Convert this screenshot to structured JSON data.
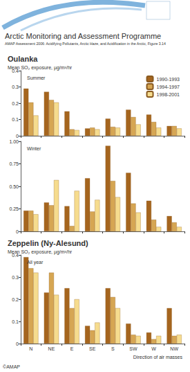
{
  "header": {
    "title": "Arctic Monitoring and Assessment Programme",
    "subtitle": "AMAP Assessment 2006: Acidifying Pollutants, Arctic Haze, and Acidification in the Arctic, Figure 3.14"
  },
  "chart_data": [
    {
      "type": "bar",
      "title": "Oulanka",
      "y_label": "Mean SO₂ exposure, µg/m³/hr",
      "subtitle": "Summer",
      "categories": [
        "N",
        "NE",
        "E",
        "SE",
        "S",
        "SW",
        "W",
        "NW"
      ],
      "series": [
        {
          "name": "1990-1993",
          "color": "#a5651e",
          "values": [
            0.29,
            0.27,
            0.15,
            0.045,
            0.105,
            0.16,
            0.13,
            0.06
          ]
        },
        {
          "name": "1994-1997",
          "color": "#d6a653",
          "values": [
            0.205,
            0.22,
            0.04,
            0.05,
            0.055,
            0.115,
            0.085,
            0.06
          ]
        },
        {
          "name": "1998-2001",
          "color": "#f6dc8e",
          "values": [
            0.125,
            0.205,
            0.035,
            0.04,
            0.05,
            0.07,
            0.05,
            0.045
          ]
        }
      ],
      "ylim": [
        0,
        0.4
      ],
      "yticks": [
        0,
        0.1,
        0.2,
        0.3,
        0.4
      ],
      "grid": false,
      "legend": "top-right",
      "tick_labels": "y"
    },
    {
      "type": "bar",
      "subtitle": "Winter",
      "categories": [
        "N",
        "NE",
        "E",
        "SE",
        "S",
        "SW",
        "W",
        "NW"
      ],
      "series": [
        {
          "name": "1990-1993",
          "color": "#a5651e",
          "values": [
            0.23,
            0.32,
            0.28,
            0.59,
            0.95,
            0.65,
            0.34,
            0.17
          ]
        },
        {
          "name": "1994-1997",
          "color": "#d6a653",
          "values": [
            0.23,
            0.29,
            0.06,
            0.22,
            0.56,
            0.31,
            0.13,
            0.1
          ]
        },
        {
          "name": "1998-2001",
          "color": "#f6dc8e",
          "values": [
            0.19,
            0.57,
            0.45,
            0.35,
            0.38,
            0.21,
            0.05,
            0.05
          ]
        }
      ],
      "ylim": [
        0,
        1
      ],
      "yticks": [
        0,
        0.25,
        {
          "value": 0.5,
          "label": "0.50"
        },
        0.75,
        {
          "value": 1,
          "label": "1.00"
        }
      ],
      "grid": false,
      "tick_labels": "y"
    },
    {
      "type": "bar",
      "title": "Zeppelin (Ny-Alesund)",
      "y_label": "Mean SO₂ exposure, µg/m³/hr",
      "subtitle": "All year",
      "x_label": "Direction of air masses",
      "categories": [
        "N",
        "NE",
        "E",
        "SE",
        "S",
        "SW",
        "W",
        "NW"
      ],
      "series": [
        {
          "name": "1990-1993",
          "color": "#a5651e",
          "values": [
            0.39,
            0.23,
            0.25,
            0.08,
            0.25,
            0.09,
            0.05,
            0.16
          ]
        },
        {
          "name": "1994-1997",
          "color": "#d6a653",
          "values": [
            0.34,
            0.32,
            0.16,
            0.06,
            0.21,
            0.04,
            0.02,
            0.035
          ]
        },
        {
          "name": "1998-2001",
          "color": "#f6dc8e",
          "values": [
            0.32,
            0.22,
            0.2,
            0.095,
            0.16,
            0.035,
            0.035,
            0.04
          ]
        }
      ],
      "ylim": [
        0,
        0.4
      ],
      "yticks": [
        0,
        0.1,
        0.2,
        0.3,
        0.4
      ],
      "grid": false
    }
  ],
  "footer": "©AMAP"
}
